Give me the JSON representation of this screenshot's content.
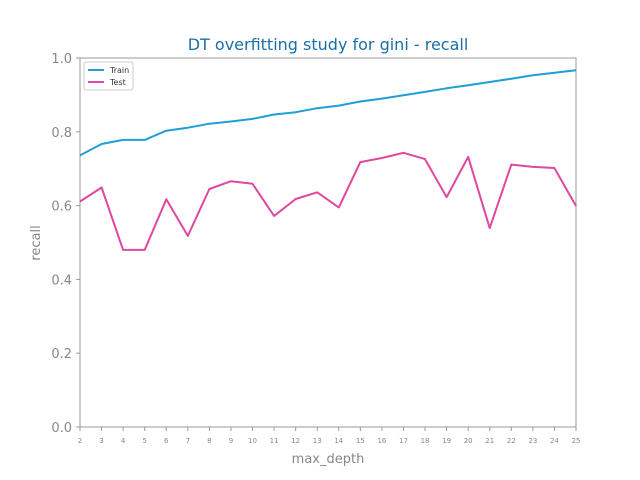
{
  "chart_data": {
    "type": "line",
    "title": "DT overfitting study for gini - recall",
    "xlabel": "max_depth",
    "ylabel": "recall",
    "x": [
      2,
      3,
      4,
      5,
      6,
      7,
      8,
      9,
      10,
      11,
      12,
      13,
      14,
      15,
      16,
      17,
      18,
      19,
      20,
      21,
      22,
      23,
      24,
      25
    ],
    "xlim": [
      2,
      25
    ],
    "ylim": [
      0.0,
      1.0
    ],
    "yticks": [
      "0.0",
      "0.2",
      "0.4",
      "0.6",
      "0.8",
      "1.0"
    ],
    "grid": false,
    "legend_position": "top-left",
    "series": [
      {
        "name": "Train",
        "color": "#1f9fd6",
        "values": [
          0.736,
          0.767,
          0.778,
          0.778,
          0.803,
          0.811,
          0.822,
          0.828,
          0.835,
          0.847,
          0.853,
          0.864,
          0.871,
          0.882,
          0.89,
          0.899,
          0.908,
          0.918,
          0.926,
          0.935,
          0.944,
          0.953,
          0.96,
          0.967
        ]
      },
      {
        "name": "Test",
        "color": "#e0479e",
        "values": [
          0.611,
          0.649,
          0.48,
          0.48,
          0.617,
          0.518,
          0.645,
          0.666,
          0.659,
          0.572,
          0.618,
          0.636,
          0.595,
          0.718,
          0.729,
          0.743,
          0.726,
          0.623,
          0.732,
          0.539,
          0.711,
          0.705,
          0.702,
          0.599
        ]
      }
    ],
    "title_color": "#1a6fa8"
  }
}
